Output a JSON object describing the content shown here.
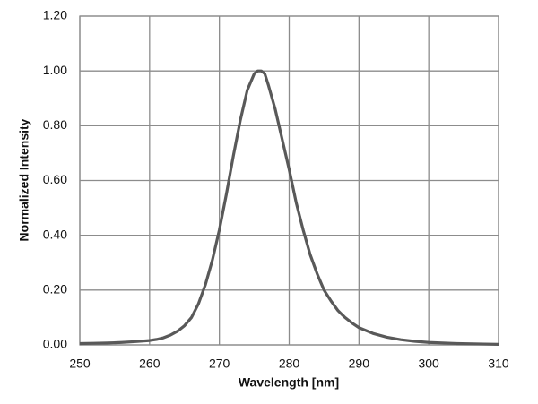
{
  "chart_data": {
    "type": "line",
    "x_label": "Wavelength [nm]",
    "y_label": "Normalized Intensity",
    "x": [
      250,
      252,
      254,
      256,
      258,
      260,
      261,
      262,
      263,
      264,
      265,
      266,
      267,
      268,
      269,
      270,
      271,
      272,
      273,
      274,
      275,
      275.5,
      276,
      276.5,
      277,
      278,
      279,
      280,
      281,
      282,
      283,
      284,
      285,
      286,
      287,
      288,
      289,
      290,
      292,
      294,
      296,
      298,
      300,
      304,
      308,
      310
    ],
    "series": [
      {
        "color": "#595959",
        "values": [
          0.005,
          0.006,
          0.007,
          0.009,
          0.012,
          0.016,
          0.02,
          0.026,
          0.036,
          0.05,
          0.07,
          0.1,
          0.15,
          0.22,
          0.31,
          0.42,
          0.55,
          0.69,
          0.82,
          0.93,
          0.99,
          1.0,
          1.0,
          0.99,
          0.95,
          0.86,
          0.75,
          0.64,
          0.52,
          0.42,
          0.33,
          0.26,
          0.2,
          0.16,
          0.125,
          0.1,
          0.08,
          0.063,
          0.042,
          0.028,
          0.019,
          0.013,
          0.009,
          0.005,
          0.003,
          0.002
        ]
      }
    ],
    "xlim": [
      250,
      310
    ],
    "ylim": [
      0,
      1.2
    ],
    "xticks": [
      250,
      260,
      270,
      280,
      290,
      300,
      310
    ],
    "yticks": [
      {
        "value": 0,
        "label": "0.00"
      },
      {
        "value": 0.2,
        "label": "0.20"
      },
      {
        "value": 0.4,
        "label": "0.40"
      },
      {
        "value": 0.6,
        "label": "0.60"
      },
      {
        "value": 0.8,
        "label": "0.80"
      },
      {
        "value": 1.0,
        "label": "1.00"
      },
      {
        "value": 1.2,
        "label": "1.20"
      }
    ],
    "grid": true
  }
}
